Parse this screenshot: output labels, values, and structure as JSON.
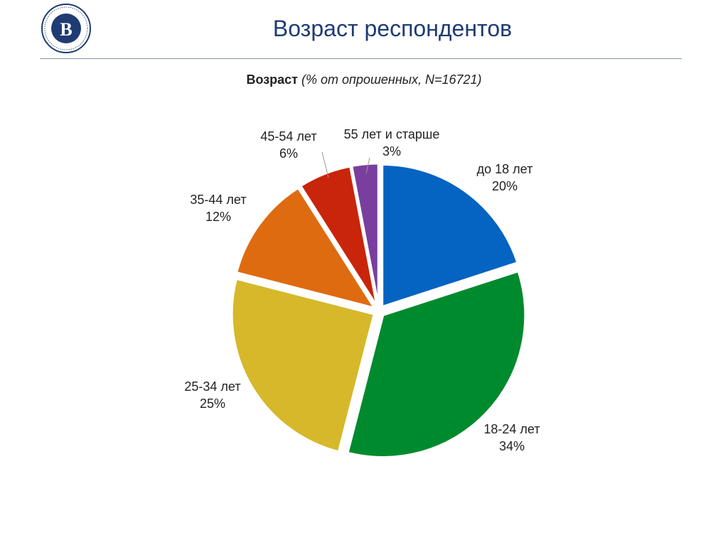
{
  "header": {
    "title": "Возраст респондентов",
    "logo_icon": "hse-university-seal-icon",
    "accent_color": "#1f3b73"
  },
  "chart_heading": {
    "bold": "Возраст",
    "italic": "(% от опрошенных, N=16721)"
  },
  "chart_data": {
    "type": "pie",
    "title": "Возраст (% от опрошенных, N=16721)",
    "start": "12 o'clock, clockwise",
    "slices": [
      {
        "label": "до 18 лет",
        "value": 20,
        "value_label": "20%",
        "color": "#0563c1"
      },
      {
        "label": "18-24 лет",
        "value": 34,
        "value_label": "34%",
        "color": "#008a2e"
      },
      {
        "label": "25-34 лет",
        "value": 25,
        "value_label": "25%",
        "color": "#d6b82a"
      },
      {
        "label": "35-44 лет",
        "value": 12,
        "value_label": "12%",
        "color": "#df6b10"
      },
      {
        "label": "45-54 лет",
        "value": 6,
        "value_label": "6%",
        "color": "#c8250b"
      },
      {
        "label": "55 лет и старше",
        "value": 3,
        "value_label": "3%",
        "color": "#7a3f9e"
      }
    ]
  }
}
